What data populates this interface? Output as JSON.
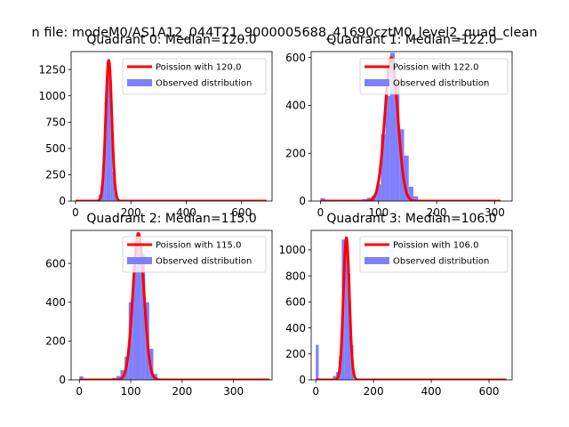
{
  "figure_title": "n file: modeM0/AS1A12_044T21_9000005688_41690cztM0_level2_quad_clean",
  "colors": {
    "poisson": "#ff0000",
    "observed": "#7f7fff",
    "legend_edge": "#cccccc"
  },
  "chart_data": [
    {
      "type": "bar",
      "title": "Quadrant 0: Median=120.0",
      "xlim": [
        -16,
        710
      ],
      "ylim": [
        0,
        1420
      ],
      "xticks": [
        0,
        200,
        400,
        600
      ],
      "yticks": [
        0,
        250,
        500,
        750,
        1000,
        1250
      ],
      "legend": [
        "Poission with 120.0",
        "Observed distribution"
      ],
      "poisson": {
        "mean": 120.0,
        "peak": 1340,
        "x_range": [
          0,
          690
        ]
      },
      "observed": {
        "bin_width": 7,
        "bins": [
          [
            0,
            4
          ],
          [
            84,
            60
          ],
          [
            91,
            140
          ],
          [
            98,
            420
          ],
          [
            105,
            940
          ],
          [
            112,
            1180
          ],
          [
            119,
            1300
          ],
          [
            126,
            780
          ],
          [
            133,
            280
          ],
          [
            140,
            80
          ],
          [
            147,
            20
          ]
        ]
      }
    },
    {
      "type": "bar",
      "title": "Quadrant 1: Median=122.0",
      "xlim": [
        -16,
        330
      ],
      "ylim": [
        0,
        625
      ],
      "xticks": [
        0,
        100,
        200,
        300
      ],
      "yticks": [
        0,
        200,
        400,
        600
      ],
      "legend": [
        "Poission with 122.0",
        "Observed distribution"
      ],
      "poisson": {
        "mean": 122.0,
        "peak": 600,
        "x_range": [
          0,
          310
        ]
      },
      "observed": {
        "bin_width": 8,
        "bins": [
          [
            0,
            12
          ],
          [
            72,
            8
          ],
          [
            80,
            14
          ],
          [
            88,
            22
          ],
          [
            96,
            70
          ],
          [
            104,
            280
          ],
          [
            112,
            440
          ],
          [
            120,
            620
          ],
          [
            128,
            500
          ],
          [
            136,
            300
          ],
          [
            144,
            190
          ],
          [
            152,
            60
          ],
          [
            160,
            20
          ]
        ]
      }
    },
    {
      "type": "bar",
      "title": "Quadrant 2: Median=115.0",
      "xlim": [
        -16,
        375
      ],
      "ylim": [
        0,
        770
      ],
      "xticks": [
        0,
        100,
        200,
        300
      ],
      "yticks": [
        0,
        200,
        400,
        600
      ],
      "legend": [
        "Poission with 115.0",
        "Observed distribution"
      ],
      "poisson": {
        "mean": 115.0,
        "peak": 755,
        "x_range": [
          0,
          370
        ]
      },
      "observed": {
        "bin_width": 8,
        "bins": [
          [
            0,
            18
          ],
          [
            64,
            10
          ],
          [
            72,
            20
          ],
          [
            80,
            50
          ],
          [
            88,
            120
          ],
          [
            96,
            400
          ],
          [
            104,
            590
          ],
          [
            112,
            720
          ],
          [
            120,
            650
          ],
          [
            128,
            400
          ],
          [
            136,
            160
          ],
          [
            144,
            30
          ]
        ]
      }
    },
    {
      "type": "bar",
      "title": "Quadrant 3: Median=106.0",
      "xlim": [
        -16,
        680
      ],
      "ylim": [
        0,
        1150
      ],
      "xticks": [
        0,
        200,
        400,
        600
      ],
      "yticks": [
        0,
        200,
        400,
        600,
        800,
        1000
      ],
      "legend": [
        "Poission with 106.0",
        "Observed distribution"
      ],
      "poisson": {
        "mean": 106.0,
        "peak": 1095,
        "x_range": [
          0,
          660
        ]
      },
      "observed": {
        "bin_width": 10,
        "bins": [
          [
            0,
            270
          ],
          [
            60,
            30
          ],
          [
            70,
            60
          ],
          [
            80,
            180
          ],
          [
            90,
            1080
          ],
          [
            100,
            1000
          ],
          [
            110,
            820
          ],
          [
            120,
            270
          ]
        ]
      }
    }
  ]
}
